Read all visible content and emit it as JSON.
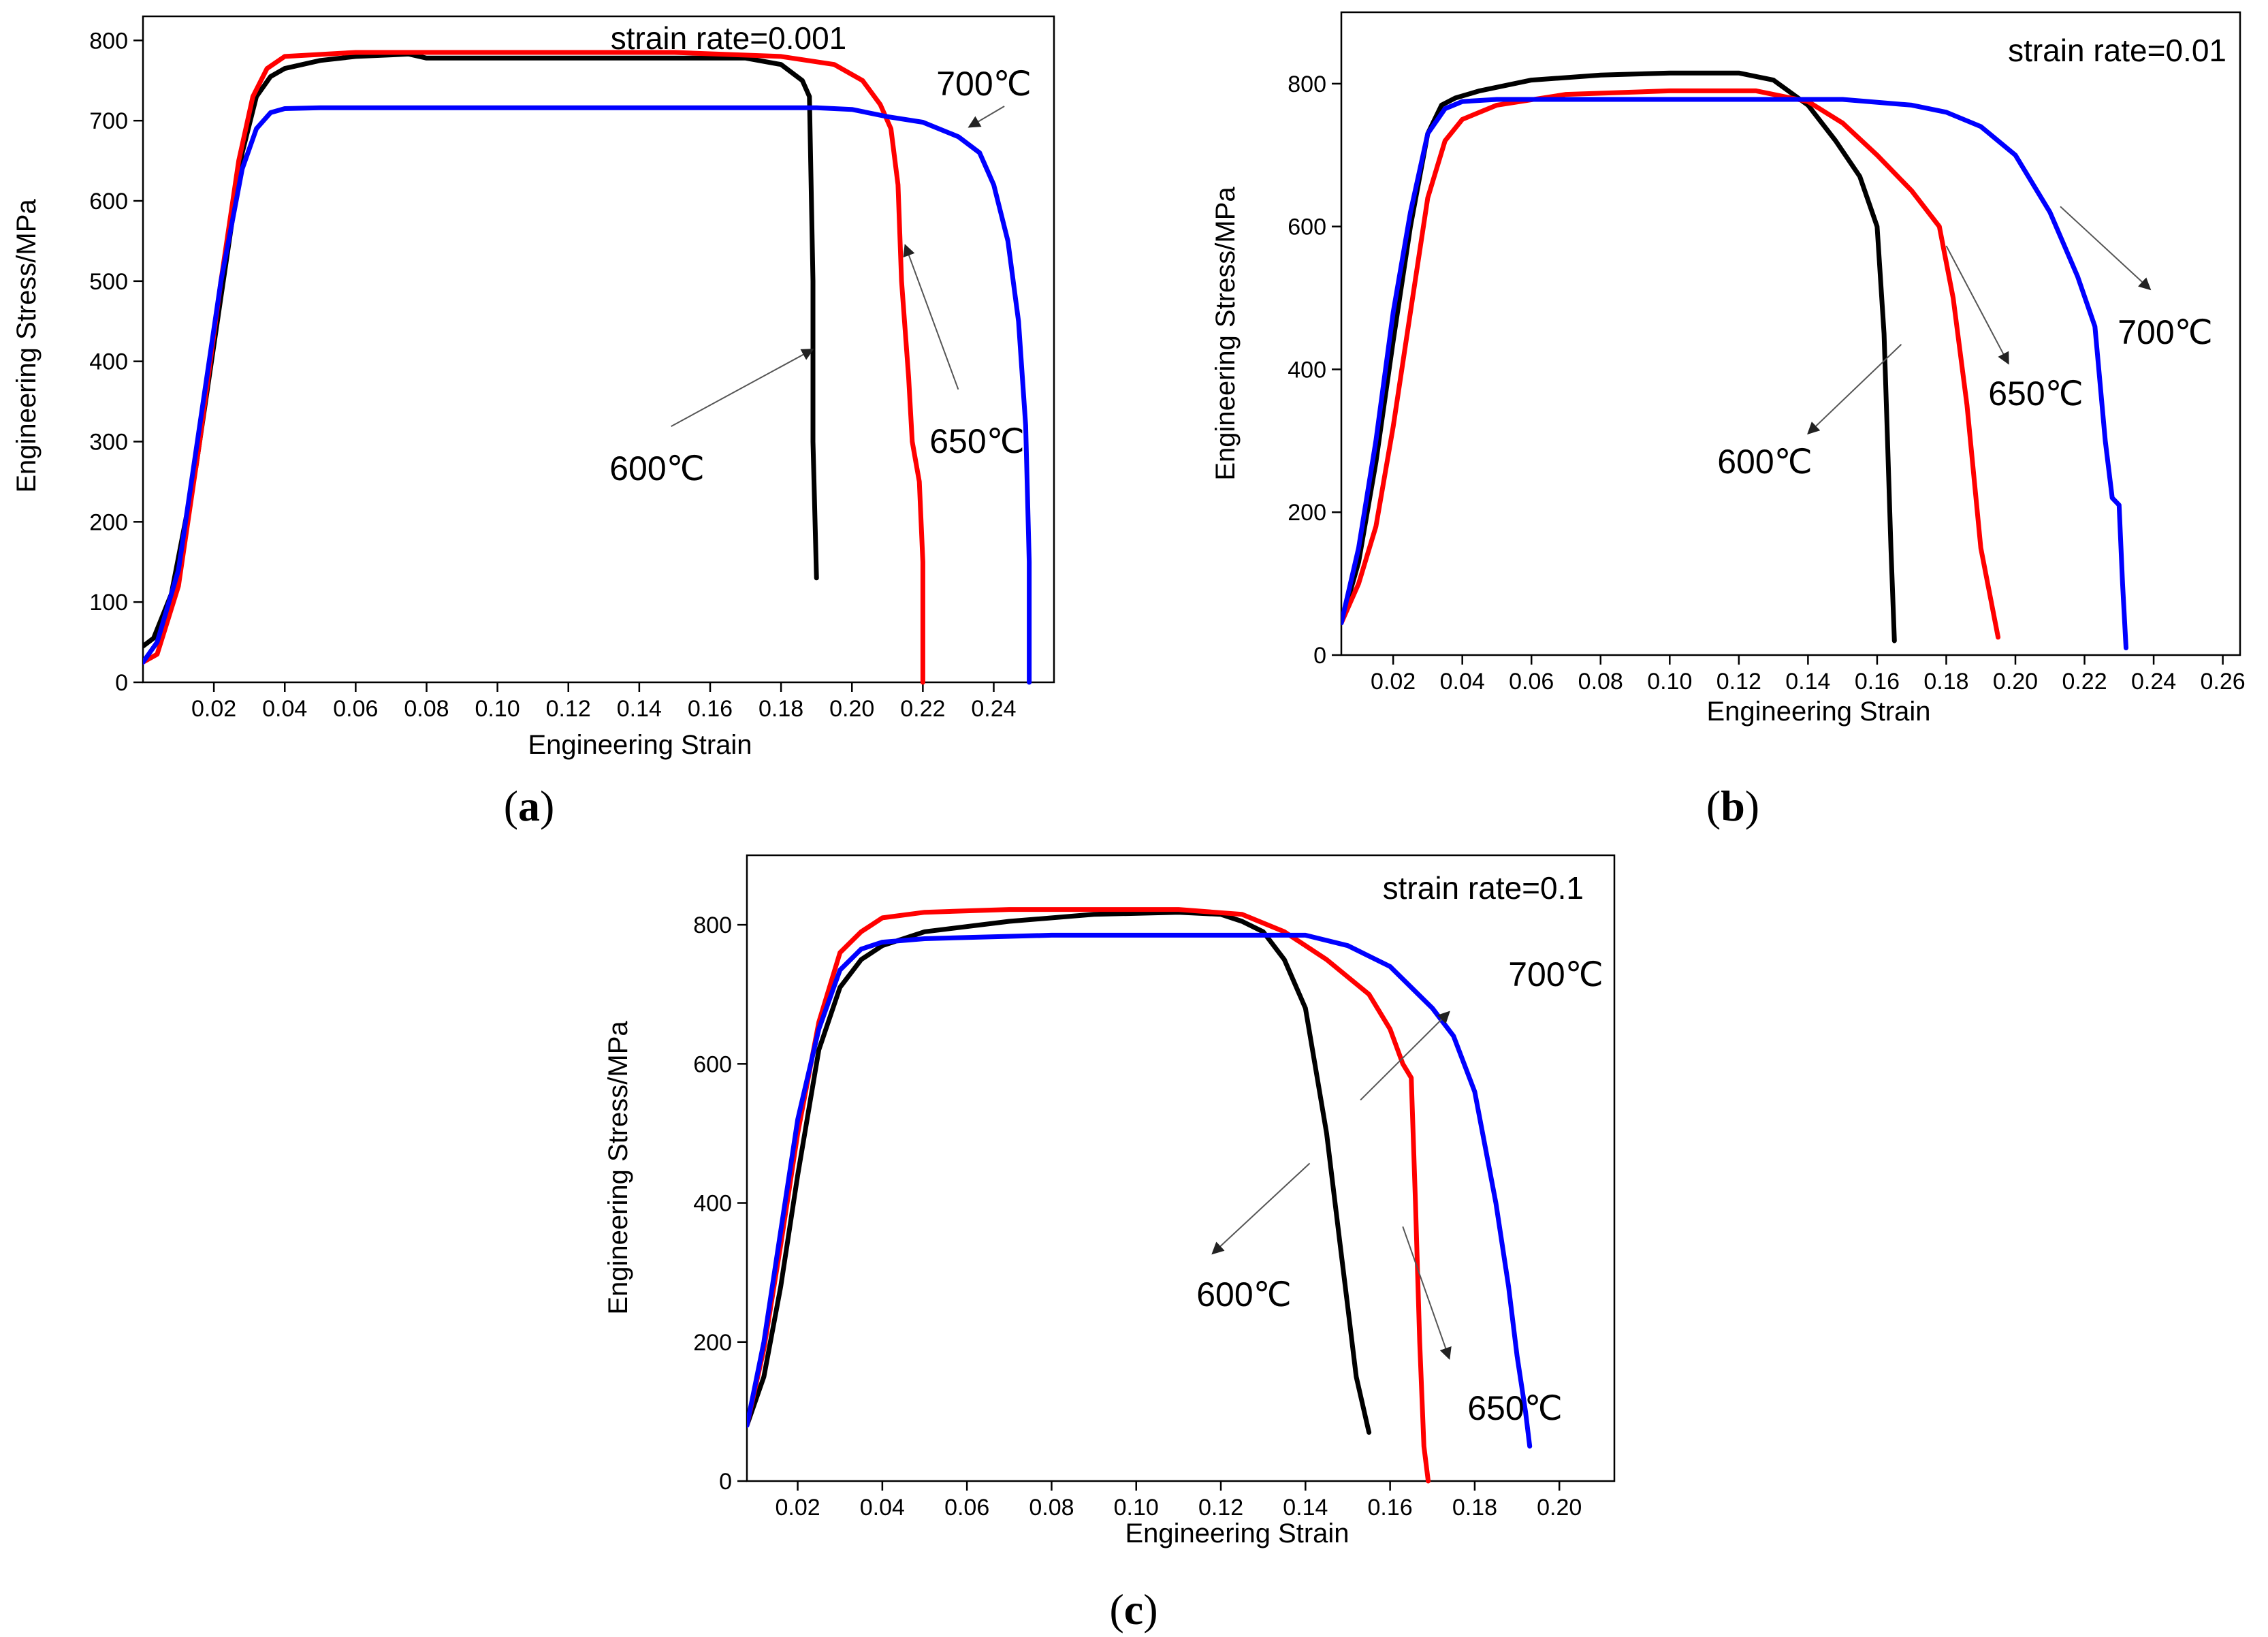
{
  "chart_data": [
    {
      "id": "a",
      "type": "line",
      "panel_label": "a",
      "annotation": "strain rate=0.001",
      "xlabel": "Engineering Strain",
      "ylabel": "Engineering Stress/MPa",
      "xlim": [
        0.0,
        0.257
      ],
      "ylim": [
        0,
        830
      ],
      "xticks": [
        0.02,
        0.04,
        0.06,
        0.08,
        0.1,
        0.12,
        0.14,
        0.16,
        0.18,
        0.2,
        0.22,
        0.24
      ],
      "xtick_labels": [
        "0.02",
        "0.04",
        "0.06",
        "0.08",
        "0.10",
        "0.12",
        "0.14",
        "0.16",
        "0.18",
        "0.20",
        "0.22",
        "0.24"
      ],
      "yticks": [
        0,
        100,
        200,
        300,
        400,
        500,
        600,
        700,
        800
      ],
      "ytick_labels": [
        "0",
        "100",
        "200",
        "300",
        "400",
        "500",
        "600",
        "700",
        "800"
      ],
      "series": [
        {
          "name": "600℃",
          "color": "#000000",
          "x": [
            0.0,
            0.003,
            0.008,
            0.015,
            0.022,
            0.028,
            0.032,
            0.036,
            0.04,
            0.05,
            0.06,
            0.07,
            0.075,
            0.08,
            0.1,
            0.14,
            0.17,
            0.18,
            0.186,
            0.188,
            0.189,
            0.189,
            0.19
          ],
          "y": [
            45,
            55,
            110,
            270,
            480,
            660,
            730,
            755,
            765,
            775,
            780,
            782,
            783,
            778,
            778,
            778,
            778,
            770,
            750,
            730,
            500,
            300,
            130
          ]
        },
        {
          "name": "650℃",
          "color": "#ff0000",
          "x": [
            0.0,
            0.004,
            0.01,
            0.016,
            0.022,
            0.027,
            0.031,
            0.035,
            0.04,
            0.06,
            0.1,
            0.15,
            0.18,
            0.195,
            0.203,
            0.208,
            0.211,
            0.213,
            0.214,
            0.216,
            0.217,
            0.219,
            0.22,
            0.22
          ],
          "y": [
            25,
            35,
            120,
            300,
            500,
            650,
            730,
            765,
            780,
            785,
            785,
            785,
            780,
            770,
            750,
            720,
            690,
            620,
            500,
            380,
            300,
            250,
            150,
            0
          ]
        },
        {
          "name": "700℃",
          "color": "#0000ff",
          "x": [
            0.0,
            0.004,
            0.01,
            0.016,
            0.022,
            0.028,
            0.032,
            0.036,
            0.04,
            0.05,
            0.1,
            0.15,
            0.19,
            0.2,
            0.21,
            0.22,
            0.23,
            0.236,
            0.24,
            0.244,
            0.247,
            0.249,
            0.25,
            0.25
          ],
          "y": [
            25,
            50,
            140,
            320,
            500,
            640,
            690,
            710,
            715,
            716,
            716,
            716,
            716,
            714,
            705,
            698,
            680,
            660,
            620,
            550,
            450,
            320,
            150,
            0
          ]
        }
      ],
      "annotations": [
        {
          "text": "700℃",
          "tip": [
            0.233,
            692
          ],
          "tail": [
            0.243,
            718
          ]
        },
        {
          "text": "650℃",
          "tip": [
            0.215,
            545
          ],
          "tail": [
            0.23,
            365
          ]
        },
        {
          "text": "600℃",
          "tip": [
            0.189,
            415
          ],
          "tail": [
            0.149,
            319
          ]
        }
      ]
    },
    {
      "id": "b",
      "type": "line",
      "panel_label": "b",
      "annotation": "strain rate=0.01",
      "xlabel": "Engineering Strain",
      "ylabel": "Engineering Stress/MPa",
      "xlim": [
        0.005,
        0.265
      ],
      "ylim": [
        0,
        900
      ],
      "xticks": [
        0.02,
        0.04,
        0.06,
        0.08,
        0.1,
        0.12,
        0.14,
        0.16,
        0.18,
        0.2,
        0.22,
        0.24,
        0.26
      ],
      "xtick_labels": [
        "0.02",
        "0.04",
        "0.06",
        "0.08",
        "0.10",
        "0.12",
        "0.14",
        "0.16",
        "0.18",
        "0.20",
        "0.22",
        "0.24",
        "0.26"
      ],
      "yticks": [
        0,
        200,
        400,
        600,
        800
      ],
      "ytick_labels": [
        "0",
        "200",
        "400",
        "600",
        "800"
      ],
      "series": [
        {
          "name": "600℃",
          "color": "#000000",
          "x": [
            0.005,
            0.01,
            0.015,
            0.02,
            0.025,
            0.03,
            0.034,
            0.038,
            0.045,
            0.06,
            0.08,
            0.1,
            0.12,
            0.13,
            0.14,
            0.148,
            0.155,
            0.16,
            0.162,
            0.163,
            0.164,
            0.165
          ],
          "y": [
            45,
            130,
            270,
            440,
            600,
            730,
            770,
            780,
            790,
            805,
            812,
            815,
            815,
            805,
            770,
            720,
            670,
            600,
            450,
            300,
            150,
            20
          ]
        },
        {
          "name": "650℃",
          "color": "#ff0000",
          "x": [
            0.005,
            0.01,
            0.015,
            0.02,
            0.025,
            0.03,
            0.035,
            0.04,
            0.05,
            0.07,
            0.1,
            0.125,
            0.14,
            0.15,
            0.16,
            0.17,
            0.178,
            0.182,
            0.186,
            0.19,
            0.195
          ],
          "y": [
            45,
            100,
            180,
            320,
            480,
            640,
            720,
            750,
            770,
            785,
            790,
            790,
            775,
            745,
            700,
            650,
            600,
            500,
            350,
            150,
            25
          ]
        },
        {
          "name": "700℃",
          "color": "#0000ff",
          "x": [
            0.005,
            0.01,
            0.015,
            0.02,
            0.025,
            0.03,
            0.035,
            0.04,
            0.05,
            0.1,
            0.15,
            0.17,
            0.18,
            0.19,
            0.2,
            0.21,
            0.218,
            0.223,
            0.226,
            0.228,
            0.23,
            0.231,
            0.232
          ],
          "y": [
            45,
            150,
            300,
            480,
            620,
            730,
            765,
            775,
            778,
            778,
            778,
            770,
            760,
            740,
            700,
            620,
            530,
            460,
            300,
            220,
            210,
            100,
            10
          ]
        }
      ],
      "annotations": [
        {
          "text": "700℃",
          "tip": [
            0.239,
            512
          ],
          "tail": [
            0.213,
            628
          ]
        },
        {
          "text": "650℃",
          "tip": [
            0.198,
            408
          ],
          "tail": [
            0.18,
            573
          ]
        },
        {
          "text": "600℃",
          "tip": [
            0.14,
            310
          ],
          "tail": [
            0.167,
            435
          ]
        }
      ]
    },
    {
      "id": "c",
      "type": "line",
      "panel_label": "c",
      "annotation": "strain rate=0.1",
      "xlabel": "Engineering Strain",
      "ylabel": "Engineering Stress/MPa",
      "xlim": [
        0.008,
        0.213
      ],
      "ylim": [
        0,
        900
      ],
      "xticks": [
        0.02,
        0.04,
        0.06,
        0.08,
        0.1,
        0.12,
        0.14,
        0.16,
        0.18,
        0.2
      ],
      "xtick_labels": [
        "0.02",
        "0.04",
        "0.06",
        "0.08",
        "0.10",
        "0.12",
        "0.14",
        "0.16",
        "0.18",
        "0.20"
      ],
      "yticks": [
        0,
        200,
        400,
        600,
        800
      ],
      "ytick_labels": [
        "0",
        "200",
        "400",
        "600",
        "800"
      ],
      "series": [
        {
          "name": "600℃",
          "color": "#000000",
          "x": [
            0.008,
            0.012,
            0.016,
            0.02,
            0.025,
            0.03,
            0.035,
            0.04,
            0.05,
            0.07,
            0.09,
            0.11,
            0.12,
            0.125,
            0.13,
            0.135,
            0.14,
            0.145,
            0.148,
            0.15,
            0.152,
            0.155
          ],
          "y": [
            80,
            150,
            280,
            440,
            620,
            710,
            750,
            770,
            790,
            805,
            815,
            818,
            815,
            805,
            790,
            750,
            680,
            500,
            350,
            250,
            150,
            70
          ]
        },
        {
          "name": "650℃",
          "color": "#ff0000",
          "x": [
            0.008,
            0.012,
            0.016,
            0.02,
            0.025,
            0.03,
            0.035,
            0.04,
            0.05,
            0.07,
            0.09,
            0.11,
            0.125,
            0.135,
            0.145,
            0.155,
            0.16,
            0.163,
            0.165,
            0.166,
            0.167,
            0.168,
            0.169
          ],
          "y": [
            80,
            190,
            340,
            500,
            660,
            760,
            790,
            810,
            818,
            822,
            822,
            822,
            815,
            790,
            750,
            700,
            650,
            600,
            580,
            400,
            200,
            50,
            0
          ]
        },
        {
          "name": "700℃",
          "color": "#0000ff",
          "x": [
            0.008,
            0.012,
            0.016,
            0.02,
            0.025,
            0.03,
            0.035,
            0.04,
            0.05,
            0.08,
            0.12,
            0.14,
            0.15,
            0.16,
            0.17,
            0.175,
            0.18,
            0.185,
            0.188,
            0.19,
            0.192,
            0.193
          ],
          "y": [
            80,
            200,
            360,
            520,
            650,
            735,
            765,
            775,
            780,
            785,
            785,
            785,
            770,
            740,
            680,
            640,
            560,
            400,
            280,
            180,
            100,
            50
          ]
        }
      ],
      "annotations": [
        {
          "text": "700℃",
          "tip": [
            0.174,
            675
          ],
          "tail": [
            0.153,
            548
          ]
        },
        {
          "text": "650℃",
          "tip": [
            0.174,
            176
          ],
          "tail": [
            0.163,
            366
          ]
        },
        {
          "text": "600℃",
          "tip": [
            0.118,
            327
          ],
          "tail": [
            0.141,
            457
          ]
        }
      ]
    }
  ]
}
